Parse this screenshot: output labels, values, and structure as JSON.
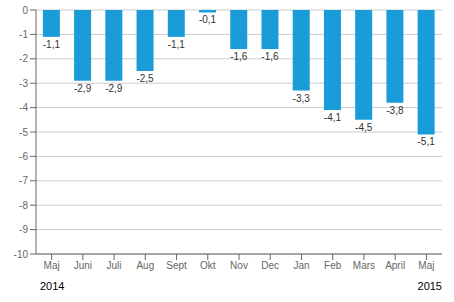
{
  "chart_data": {
    "type": "bar",
    "categories": [
      "Maj",
      "Juni",
      "Juli",
      "Aug",
      "Sept",
      "Okt",
      "Nov",
      "Dec",
      "Jan",
      "Feb",
      "Mars",
      "April",
      "Maj"
    ],
    "values": [
      -1.1,
      -2.9,
      -2.9,
      -2.5,
      -1.1,
      -0.1,
      -1.6,
      -1.6,
      -3.3,
      -4.1,
      -4.5,
      -3.8,
      -5.1
    ],
    "value_labels": [
      "-1,1",
      "-2,9",
      "-2,9",
      "-2,5",
      "-1,1",
      "-0,1",
      "-1,6",
      "-1,6",
      "-3,3",
      "-4,1",
      "-4,5",
      "-3,8",
      "-5,1"
    ],
    "data_labels": true,
    "color": "#1a9cd8",
    "ylim": [
      -10,
      0
    ],
    "yticks": [
      0,
      -1,
      -2,
      -3,
      -4,
      -5,
      -6,
      -7,
      -8,
      -9,
      -10
    ],
    "grid": true,
    "annotations": [
      "2014",
      "2015"
    ]
  }
}
